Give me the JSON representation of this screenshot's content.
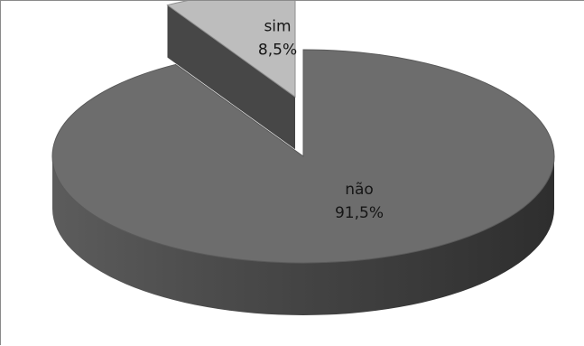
{
  "chart_data": {
    "type": "pie",
    "title": "",
    "slices": [
      {
        "label": "não",
        "value": 91.5,
        "value_label": "91,5%",
        "color": "#6d6d6d",
        "exploded": false
      },
      {
        "label": "sim",
        "value": 8.5,
        "value_label": "8,5%",
        "color": "#bdbdbd",
        "exploded": true
      }
    ],
    "style": "3d-exploded",
    "legend": "none"
  }
}
